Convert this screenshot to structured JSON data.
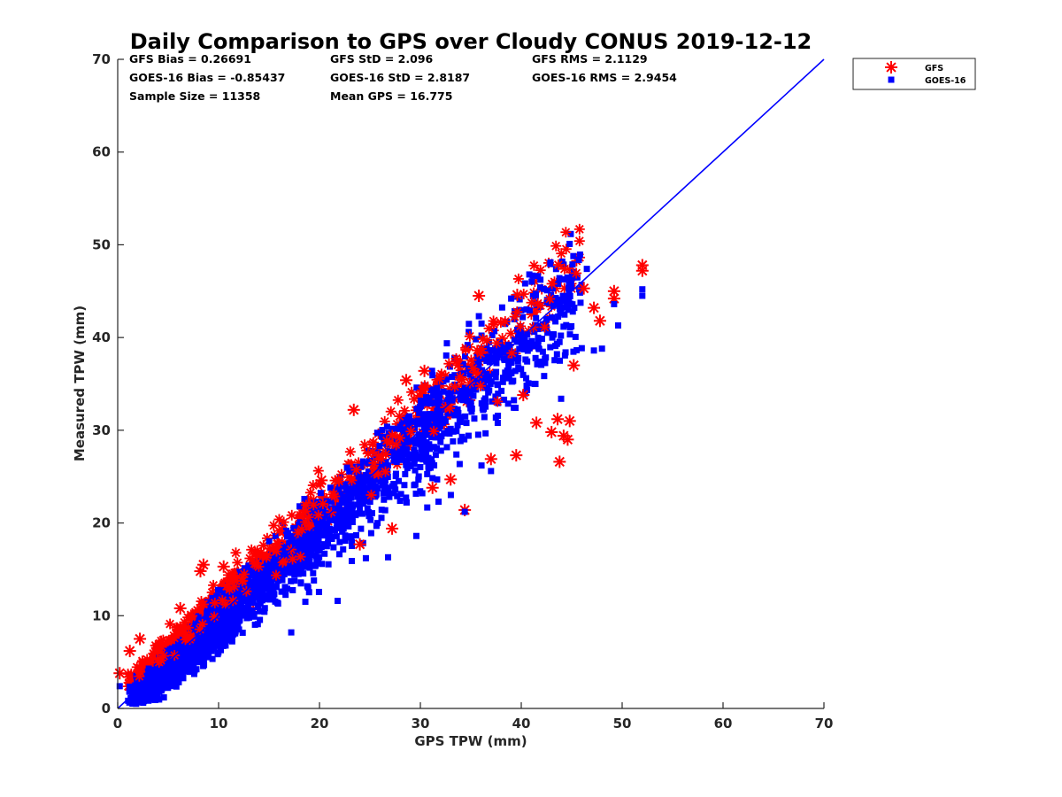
{
  "chart_data": {
    "type": "scatter",
    "title": "Daily Comparison to GPS over Cloudy CONUS 2019-12-12",
    "xlabel": "GPS TPW (mm)",
    "ylabel": "Measured TPW (mm)",
    "xlim": [
      0,
      70
    ],
    "ylim": [
      0,
      70
    ],
    "xticks": [
      "0",
      "10",
      "20",
      "30",
      "40",
      "50",
      "60",
      "70"
    ],
    "yticks": [
      "0",
      "10",
      "20",
      "30",
      "40",
      "50",
      "60",
      "70"
    ],
    "grid": false,
    "legend_position": "outside-top-right",
    "stats": [
      [
        "GFS Bias = 0.26691",
        "GFS StD = 2.096",
        "GFS RMS = 2.1129"
      ],
      [
        "GOES-16 Bias = -0.85437",
        "GOES-16 StD = 2.8187",
        "GOES-16 RMS = 2.9454"
      ],
      [
        "Sample Size = 11358",
        "Mean GPS = 16.775"
      ]
    ],
    "reference_line": {
      "x": [
        0,
        70
      ],
      "y": [
        0,
        70
      ],
      "color": "#0000ff"
    },
    "series": [
      {
        "name": "GFS",
        "marker": "asterisk",
        "color": "#ff0000",
        "sample_size": 11358,
        "bias": 0.26691,
        "std": 2.096,
        "outliers": [
          [
            52,
            47.8
          ],
          [
            52,
            47.2
          ],
          [
            49.2,
            45
          ],
          [
            49.2,
            44.2
          ],
          [
            47.8,
            41.8
          ],
          [
            47.2,
            43.2
          ],
          [
            46.2,
            45.3
          ],
          [
            45.2,
            37
          ],
          [
            44.8,
            31
          ],
          [
            44.6,
            29
          ],
          [
            44.2,
            29.4
          ],
          [
            43.8,
            26.6
          ],
          [
            43.6,
            31.2
          ],
          [
            43,
            29.8
          ],
          [
            41.5,
            30.8
          ],
          [
            39.5,
            27.3
          ],
          [
            40.2,
            33.8
          ],
          [
            39.6,
            44.6
          ],
          [
            37,
            26.9
          ],
          [
            35.8,
            44.5
          ],
          [
            34.4,
            21.4
          ],
          [
            33,
            24.7
          ],
          [
            31.2,
            23.8
          ],
          [
            30.4,
            36.4
          ],
          [
            28.6,
            35.4
          ],
          [
            23.4,
            32.2
          ],
          [
            27.2,
            19.4
          ],
          [
            24,
            17.7
          ],
          [
            20.2,
            24.6
          ],
          [
            8.5,
            15.5
          ],
          [
            8.2,
            14.8
          ],
          [
            10.5,
            15.3
          ],
          [
            6.2,
            10.8
          ],
          [
            0.2,
            3.8
          ],
          [
            1.2,
            6.2
          ],
          [
            2.2,
            7.5
          ]
        ]
      },
      {
        "name": "GOES-16",
        "marker": "square",
        "color": "#0000ff",
        "sample_size": 11358,
        "bias": -0.85437,
        "std": 2.8187,
        "outliers": [
          [
            52,
            45.2
          ],
          [
            52,
            44.5
          ],
          [
            49.2,
            43.6
          ],
          [
            49.6,
            41.3
          ],
          [
            48,
            38.8
          ],
          [
            47.2,
            38.6
          ],
          [
            46.5,
            47.4
          ],
          [
            40.8,
            46.8
          ],
          [
            39,
            44.2
          ],
          [
            35.8,
            42.3
          ],
          [
            34.4,
            21.2
          ],
          [
            37,
            25.6
          ],
          [
            31.8,
            22.3
          ],
          [
            29.6,
            18.6
          ],
          [
            26.8,
            16.3
          ],
          [
            23.2,
            15.9
          ],
          [
            21.8,
            11.6
          ],
          [
            18.6,
            11.5
          ],
          [
            15.4,
            12.2
          ],
          [
            12.4,
            11.6
          ],
          [
            17.2,
            8.2
          ],
          [
            24.6,
            16.2
          ],
          [
            0.2,
            2.4
          ]
        ]
      }
    ]
  }
}
